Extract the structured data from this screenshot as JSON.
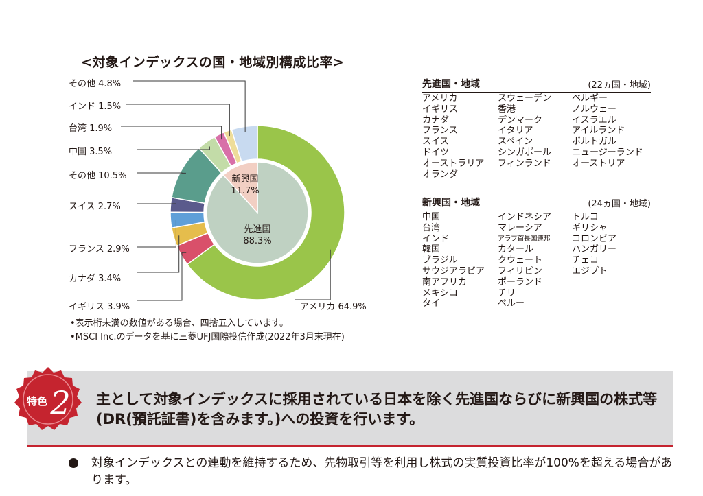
{
  "chart_data": {
    "type": "pie",
    "title": "<対象インデックスの国・地域別構成比率>",
    "outer_ring": [
      {
        "label": "アメリカ",
        "value": 64.9,
        "display": "アメリカ 64.9%",
        "color": "#9ac54a"
      },
      {
        "label": "イギリス",
        "value": 3.9,
        "display": "イギリス 3.9%",
        "color": "#d9506a"
      },
      {
        "label": "カナダ",
        "value": 3.4,
        "display": "カナダ 3.4%",
        "color": "#e5bd4c"
      },
      {
        "label": "フランス",
        "value": 2.9,
        "display": "フランス 2.9%",
        "color": "#5f9fd8"
      },
      {
        "label": "スイス",
        "value": 2.7,
        "display": "スイス 2.7%",
        "color": "#5a5a8c"
      },
      {
        "label": "その他",
        "value": 10.5,
        "display": "その他 10.5%",
        "color": "#5a9d8c"
      },
      {
        "label": "中国",
        "value": 3.5,
        "display": "中国 3.5%",
        "color": "#c3dca8"
      },
      {
        "label": "台湾",
        "value": 1.9,
        "display": "台湾 1.9%",
        "color": "#d870a8"
      },
      {
        "label": "インド",
        "value": 1.5,
        "display": "インド 1.5%",
        "color": "#eedd9a"
      },
      {
        "label": "その他",
        "value": 4.8,
        "display": "その他 4.8%",
        "color": "#c8daf0"
      }
    ],
    "inner": [
      {
        "label": "先進国",
        "value": 88.3,
        "value_text": "88.3%",
        "color": "#bfd1c2"
      },
      {
        "label": "新興国",
        "value": 11.7,
        "value_text": "11.7%",
        "color": "#f2cfc3"
      }
    ]
  },
  "notes": [
    "•表示桁未満の数値がある場合、四捨五入しています。",
    "•MSCI Inc.のデータを基に三菱UFJ国際投信作成(2022年3月末現在)"
  ],
  "developed": {
    "title": "先進国・地域",
    "count": "(22ヵ国・地域)",
    "columns": [
      [
        "アメリカ",
        "イギリス",
        "カナダ",
        "フランス",
        "スイス",
        "ドイツ",
        "オーストラリア",
        "オランダ"
      ],
      [
        "スウェーデン",
        "香港",
        "デンマーク",
        "イタリア",
        "スペイン",
        "シンガポール",
        "フィンランド"
      ],
      [
        "ベルギー",
        "ノルウェー",
        "イスラエル",
        "アイルランド",
        "ポルトガル",
        "ニュージーランド",
        "オーストリア"
      ]
    ]
  },
  "emerging": {
    "title": "新興国・地域",
    "count": "(24ヵ国・地域)",
    "columns": [
      [
        "中国",
        "台湾",
        "インド",
        "韓国",
        "ブラジル",
        "サウジアラビア",
        "南アフリカ",
        "メキシコ",
        "タイ"
      ],
      [
        "インドネシア",
        "マレーシア",
        "アラブ首長国連邦",
        "カタール",
        "クウェート",
        "フィリピン",
        "ポーランド",
        "チリ",
        "ペルー"
      ],
      [
        "トルコ",
        "ギリシャ",
        "コロンビア",
        "ハンガリー",
        "チェコ",
        "エジプト"
      ]
    ]
  },
  "feature": {
    "badge_label": "特色",
    "badge_number": "2",
    "text": "主として対象インデックスに採用されている日本を除く先進国ならびに新興国の株式等(DR(預託証書)を含みます。)への投資を行います。",
    "bullet": "対象インデックスとの連動を維持するため、先物取引等を利用し株式の実質投資比率が100%を超える場合があります。"
  },
  "colors": {
    "accent_red": "#c5242f",
    "feature_bg": "#dcdcdd"
  }
}
